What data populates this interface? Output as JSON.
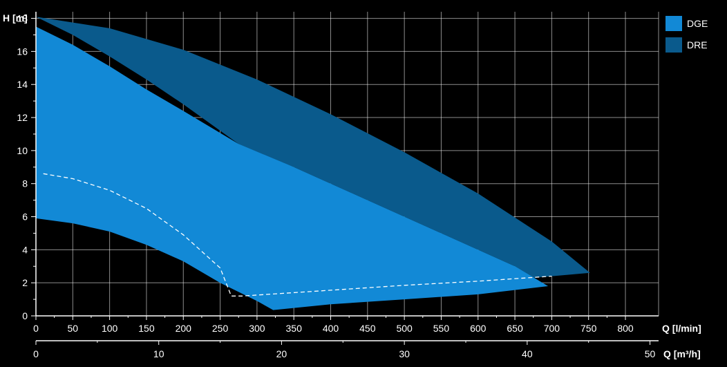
{
  "chart_data": {
    "type": "area",
    "y_axis": {
      "label": "H [m]",
      "ticks": [
        "0",
        "2",
        "4",
        "6",
        "8",
        "10",
        "12",
        "14",
        "16",
        "18"
      ],
      "range": [
        0,
        18.4
      ]
    },
    "x_axis": {
      "label": "Q [l/min]",
      "ticks": [
        "0",
        "50",
        "100",
        "150",
        "200",
        "250",
        "300",
        "350",
        "400",
        "450",
        "500",
        "550",
        "600",
        "650",
        "700",
        "750",
        "800"
      ],
      "range": [
        0,
        845
      ]
    },
    "x_axis_secondary": {
      "label": "Q [m³/h]",
      "ticks": [
        "0",
        "10",
        "20",
        "30",
        "40",
        "50"
      ],
      "range": [
        0,
        50.7
      ]
    },
    "grid": true,
    "legend": {
      "placement": "right",
      "entries": [
        "DGE",
        "DRE"
      ]
    },
    "colors": {
      "DGE": "#1289d6",
      "DRE": "#0a5a8c",
      "grid": "#ffffff",
      "axis": "#ffffff",
      "background": "#000000"
    },
    "series": [
      {
        "name": "DRE",
        "upper": [
          [
            0,
            18.1
          ],
          [
            100,
            17.4
          ],
          [
            200,
            16.1
          ],
          [
            300,
            14.3
          ],
          [
            400,
            12.2
          ],
          [
            500,
            9.9
          ],
          [
            600,
            7.4
          ],
          [
            700,
            4.5
          ],
          [
            752,
            2.6
          ]
        ],
        "lower_left": [
          [
            0,
            18.1
          ],
          [
            50,
            17.0
          ],
          [
            100,
            15.7
          ],
          [
            150,
            14.3
          ],
          [
            200,
            12.8
          ],
          [
            275,
            10.4
          ],
          [
            300,
            9.8
          ]
        ],
        "lower_right": [
          [
            752,
            2.6
          ],
          [
            650,
            2.2
          ]
        ]
      },
      {
        "name": "DGE",
        "polygon": [
          [
            0,
            17.5
          ],
          [
            50,
            16.4
          ],
          [
            100,
            15.1
          ],
          [
            150,
            13.7
          ],
          [
            200,
            12.4
          ],
          [
            275,
            10.4
          ],
          [
            350,
            9.0
          ],
          [
            450,
            7.0
          ],
          [
            550,
            5.0
          ],
          [
            650,
            3.0
          ],
          [
            695,
            1.8
          ],
          [
            600,
            1.3
          ],
          [
            500,
            1.0
          ],
          [
            400,
            0.7
          ],
          [
            322,
            0.35
          ],
          [
            300,
            0.9
          ],
          [
            250,
            2.0
          ],
          [
            200,
            3.3
          ],
          [
            150,
            4.3
          ],
          [
            100,
            5.1
          ],
          [
            50,
            5.6
          ],
          [
            0,
            5.9
          ]
        ]
      }
    ],
    "efficiency_line": {
      "style": "dashed",
      "points": [
        [
          10,
          8.6
        ],
        [
          50,
          8.3
        ],
        [
          100,
          7.6
        ],
        [
          150,
          6.5
        ],
        [
          200,
          4.9
        ],
        [
          250,
          2.9
        ],
        [
          265,
          1.2
        ],
        [
          280,
          1.2
        ],
        [
          400,
          1.55
        ],
        [
          500,
          1.85
        ],
        [
          600,
          2.1
        ],
        [
          700,
          2.4
        ]
      ]
    }
  }
}
